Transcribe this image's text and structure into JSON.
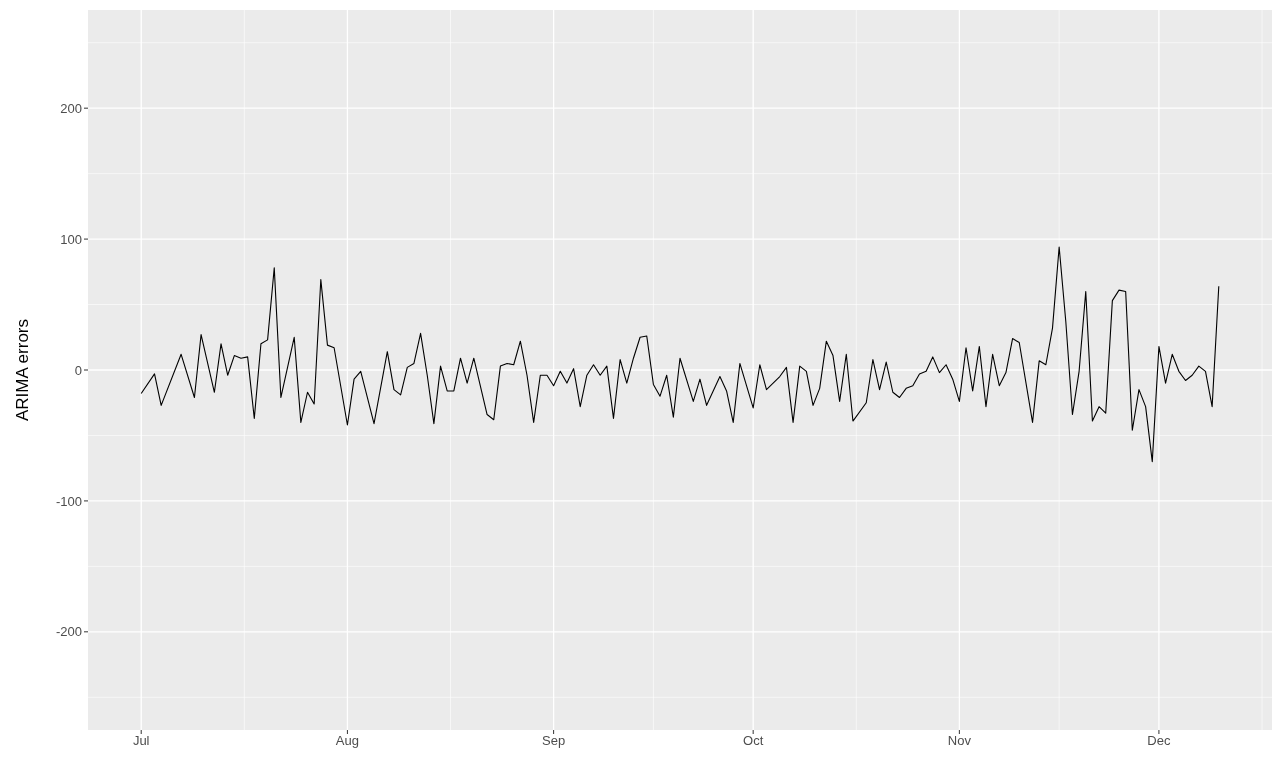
{
  "chart_data": {
    "type": "line",
    "ylabel": "ARIMA errors",
    "x": [
      "--07-01",
      "--07-03",
      "--07-04",
      "--07-07",
      "--07-09",
      "--07-10",
      "--07-12",
      "--07-13",
      "--07-14",
      "--07-15",
      "--07-16",
      "--07-17",
      "--07-18",
      "--07-19",
      "--07-20",
      "--07-21",
      "--07-22",
      "--07-24",
      "--07-25",
      "--07-26",
      "--07-27",
      "--07-28",
      "--07-29",
      "--07-30",
      "--08-01",
      "--08-02",
      "--08-03",
      "--08-05",
      "--08-07",
      "--08-08",
      "--08-09",
      "--08-10",
      "--08-11",
      "--08-12",
      "--08-13",
      "--08-14",
      "--08-15",
      "--08-16",
      "--08-17",
      "--08-18",
      "--08-19",
      "--08-20",
      "--08-22",
      "--08-23",
      "--08-24",
      "--08-25",
      "--08-26",
      "--08-27",
      "--08-28",
      "--08-29",
      "--08-30",
      "--08-31",
      "--09-01",
      "--09-02",
      "--09-03",
      "--09-04",
      "--09-05",
      "--09-06",
      "--09-07",
      "--09-08",
      "--09-09",
      "--09-10",
      "--09-11",
      "--09-12",
      "--09-13",
      "--09-14",
      "--09-15",
      "--09-16",
      "--09-17",
      "--09-18",
      "--09-19",
      "--09-20",
      "--09-22",
      "--09-23",
      "--09-24",
      "--09-26",
      "--09-27",
      "--09-28",
      "--09-29",
      "--10-01",
      "--10-02",
      "--10-03",
      "--10-05",
      "--10-06",
      "--10-07",
      "--10-08",
      "--10-09",
      "--10-10",
      "--10-11",
      "--10-12",
      "--10-13",
      "--10-14",
      "--10-15",
      "--10-16",
      "--10-18",
      "--10-19",
      "--10-20",
      "--10-21",
      "--10-22",
      "--10-23",
      "--10-24",
      "--10-25",
      "--10-26",
      "--10-27",
      "--10-28",
      "--10-29",
      "--10-30",
      "--10-31",
      "--11-01",
      "--11-02",
      "--11-03",
      "--11-04",
      "--11-05",
      "--11-06",
      "--11-07",
      "--11-08",
      "--11-09",
      "--11-10",
      "--11-12",
      "--11-13",
      "--11-14",
      "--11-15",
      "--11-16",
      "--11-17",
      "--11-18",
      "--11-19",
      "--11-20",
      "--11-21",
      "--11-22",
      "--11-23",
      "--11-24",
      "--11-25",
      "--11-26",
      "--11-27",
      "--11-28",
      "--11-29",
      "--11-30",
      "--12-01",
      "--12-02",
      "--12-03",
      "--12-04",
      "--12-05",
      "--12-06",
      "--12-07",
      "--12-08",
      "--12-09",
      "--12-10"
    ],
    "values": [
      -18,
      -3,
      -27,
      12,
      -21,
      27,
      -17,
      20,
      -4,
      11,
      9,
      10,
      -37,
      20,
      23,
      78,
      -21,
      25,
      -40,
      -17,
      -26,
      69,
      19,
      17,
      -42,
      -7,
      -1,
      -41,
      14,
      -15,
      -19,
      2,
      5,
      28,
      -4,
      -41,
      3,
      -16,
      -16,
      9,
      -10,
      9,
      -34,
      -38,
      3,
      5,
      4,
      22,
      -4,
      -40,
      -4,
      -4,
      -12,
      -1,
      -10,
      1,
      -28,
      -4,
      4,
      -4,
      3,
      -37,
      8,
      -10,
      9,
      25,
      26,
      -11,
      -20,
      -4,
      -36,
      9,
      -24,
      -7,
      -27,
      -5,
      -16,
      -40,
      5,
      -29,
      4,
      -15,
      -5,
      2,
      -40,
      3,
      -1,
      -27,
      -14,
      22,
      11,
      -24,
      12,
      -39,
      -25,
      8,
      -15,
      6,
      -17,
      -21,
      -14,
      -12,
      -3,
      -1,
      10,
      -2,
      4,
      -7,
      -24,
      17,
      -16,
      18,
      -28,
      12,
      -12,
      -2,
      24,
      21,
      -40,
      7,
      4,
      32,
      94,
      37,
      -34,
      -1,
      60,
      -39,
      -28,
      -33,
      53,
      61,
      60,
      -46,
      -15,
      -28,
      -70,
      18,
      -10,
      12,
      -1,
      -8,
      -4,
      3,
      -1,
      -28,
      64
    ],
    "color": "#000000",
    "xlim": [
      "--06-23",
      "--12-18"
    ],
    "xticks": [
      {
        "value": "--07-01",
        "label": "Jul"
      },
      {
        "value": "--08-01",
        "label": "Aug"
      },
      {
        "value": "--09-01",
        "label": "Sep"
      },
      {
        "value": "--10-01",
        "label": "Oct"
      },
      {
        "value": "--11-01",
        "label": "Nov"
      },
      {
        "value": "--12-01",
        "label": "Dec"
      }
    ],
    "ylim": [
      -275,
      275
    ],
    "yticks": [
      -200,
      -100,
      0,
      100,
      200
    ],
    "grid": true
  }
}
